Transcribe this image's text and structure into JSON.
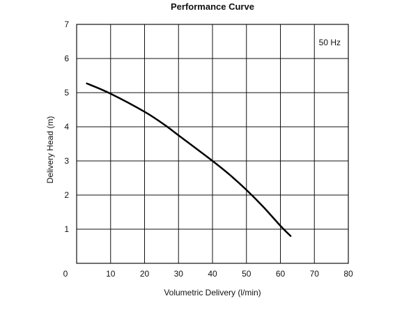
{
  "chart_data": {
    "type": "line",
    "title": "Performance Curve",
    "xlabel": "Volumetric Delivery (l/min)",
    "ylabel": "Delivery Head (m)",
    "xlim": [
      0,
      80
    ],
    "ylim": [
      0,
      7
    ],
    "x_ticks": [
      "0",
      "10",
      "20",
      "30",
      "40",
      "50",
      "60",
      "70",
      "80"
    ],
    "y_ticks": [
      "1",
      "2",
      "3",
      "4",
      "5",
      "6",
      "7"
    ],
    "grid": true,
    "annotation": "50 Hz",
    "series": [
      {
        "name": "50 Hz",
        "x": [
          3,
          10,
          20,
          26,
          30,
          40,
          45,
          50,
          55,
          60,
          63
        ],
        "y": [
          5.27,
          4.97,
          4.44,
          4.05,
          3.75,
          3.0,
          2.6,
          2.15,
          1.65,
          1.1,
          0.8
        ]
      }
    ]
  }
}
